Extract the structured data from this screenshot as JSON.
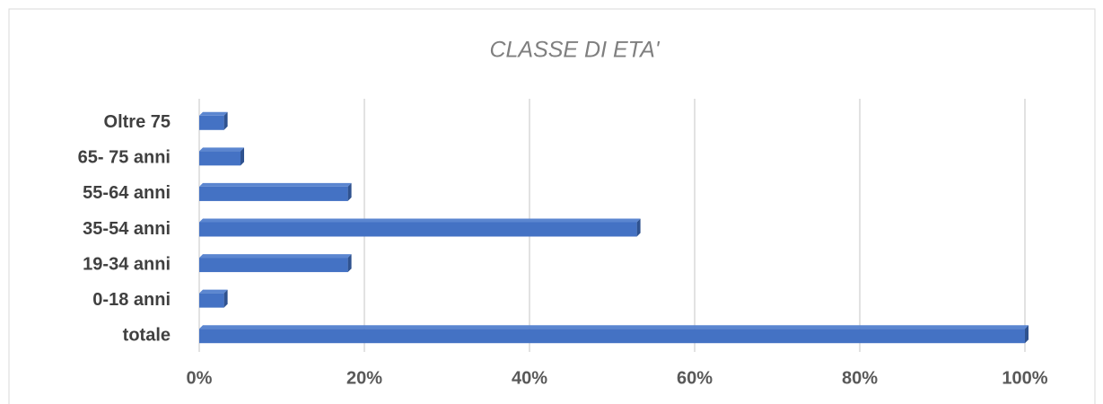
{
  "chart_data": {
    "type": "bar",
    "orientation": "horizontal",
    "title": "CLASSE DI ETA'",
    "categories": [
      "Oltre 75",
      "65- 75 anni",
      "55-64 anni",
      "35-54 anni",
      "19-34 anni",
      "0-18 anni",
      "totale"
    ],
    "values": [
      3,
      5,
      18,
      53,
      18,
      3,
      100
    ],
    "color": "#4472c4",
    "xlim": [
      0,
      100
    ],
    "xticks": [
      {
        "value": 0,
        "label": "0%"
      },
      {
        "value": 20,
        "label": "20%"
      },
      {
        "value": 40,
        "label": "40%"
      },
      {
        "value": 60,
        "label": "60%"
      },
      {
        "value": 80,
        "label": "80%"
      },
      {
        "value": 100,
        "label": "100%"
      }
    ],
    "grid": true
  }
}
